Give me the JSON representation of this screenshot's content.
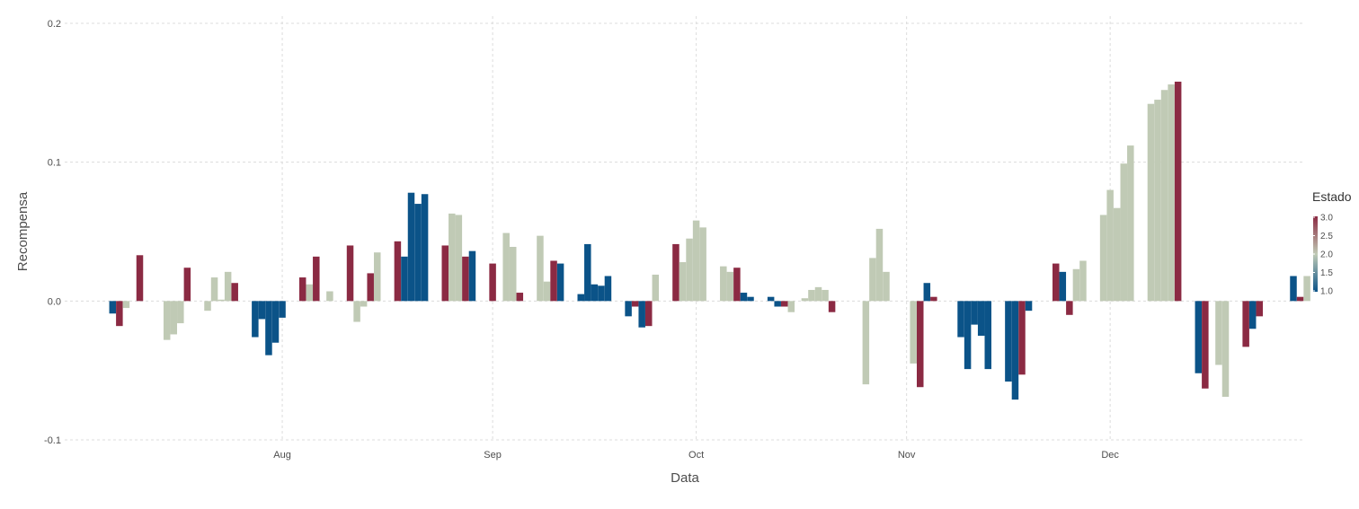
{
  "chart_data": {
    "type": "bar",
    "xlabel": "Data",
    "ylabel": "Recompensa",
    "ylim": [
      -0.1,
      0.2
    ],
    "yticks": [
      -0.1,
      0.0,
      0.1,
      0.2
    ],
    "ytick_labels": [
      "-0.1",
      "0.0",
      "0.1",
      "0.2"
    ],
    "xlim": [
      0,
      180
    ],
    "xticks": [
      {
        "label": "Aug",
        "day": 31
      },
      {
        "label": "Sep",
        "day": 62
      },
      {
        "label": "Oct",
        "day": 92
      },
      {
        "label": "Nov",
        "day": 123
      },
      {
        "label": "Dec",
        "day": 153
      }
    ],
    "grid": true,
    "legend": {
      "title": "Estado",
      "position": "right",
      "range": [
        1.0,
        3.0
      ],
      "ticks": [
        "3.0",
        "2.5",
        "2.0",
        "1.5",
        "1.0"
      ],
      "colors": {
        "1": "#0b5388",
        "2": "#c0cab5",
        "3": "#8b2a43"
      }
    },
    "bars": [
      {
        "day": 6,
        "value": -0.009,
        "state": 1
      },
      {
        "day": 7,
        "value": -0.018,
        "state": 3
      },
      {
        "day": 8,
        "value": -0.005,
        "state": 2
      },
      {
        "day": 10,
        "value": 0.033,
        "state": 3
      },
      {
        "day": 14,
        "value": -0.028,
        "state": 2
      },
      {
        "day": 15,
        "value": -0.024,
        "state": 2
      },
      {
        "day": 16,
        "value": -0.016,
        "state": 2
      },
      {
        "day": 17,
        "value": 0.024,
        "state": 3
      },
      {
        "day": 20,
        "value": -0.007,
        "state": 2
      },
      {
        "day": 21,
        "value": 0.017,
        "state": 2
      },
      {
        "day": 22,
        "value": 0.001,
        "state": 2
      },
      {
        "day": 23,
        "value": 0.021,
        "state": 2
      },
      {
        "day": 24,
        "value": 0.013,
        "state": 3
      },
      {
        "day": 27,
        "value": -0.026,
        "state": 1
      },
      {
        "day": 28,
        "value": -0.013,
        "state": 1
      },
      {
        "day": 29,
        "value": -0.039,
        "state": 1
      },
      {
        "day": 30,
        "value": -0.03,
        "state": 1
      },
      {
        "day": 31,
        "value": -0.012,
        "state": 1
      },
      {
        "day": 34,
        "value": 0.017,
        "state": 3
      },
      {
        "day": 35,
        "value": 0.012,
        "state": 2
      },
      {
        "day": 36,
        "value": 0.032,
        "state": 3
      },
      {
        "day": 38,
        "value": 0.007,
        "state": 2
      },
      {
        "day": 41,
        "value": 0.04,
        "state": 3
      },
      {
        "day": 42,
        "value": -0.015,
        "state": 2
      },
      {
        "day": 43,
        "value": -0.004,
        "state": 2
      },
      {
        "day": 44,
        "value": 0.02,
        "state": 3
      },
      {
        "day": 45,
        "value": 0.035,
        "state": 2
      },
      {
        "day": 48,
        "value": 0.043,
        "state": 3
      },
      {
        "day": 49,
        "value": 0.032,
        "state": 1
      },
      {
        "day": 50,
        "value": 0.078,
        "state": 1
      },
      {
        "day": 51,
        "value": 0.07,
        "state": 1
      },
      {
        "day": 52,
        "value": 0.077,
        "state": 1
      },
      {
        "day": 55,
        "value": 0.04,
        "state": 3
      },
      {
        "day": 56,
        "value": 0.063,
        "state": 2
      },
      {
        "day": 57,
        "value": 0.062,
        "state": 2
      },
      {
        "day": 58,
        "value": 0.032,
        "state": 3
      },
      {
        "day": 59,
        "value": 0.036,
        "state": 1
      },
      {
        "day": 62,
        "value": 0.027,
        "state": 3
      },
      {
        "day": 64,
        "value": 0.049,
        "state": 2
      },
      {
        "day": 65,
        "value": 0.039,
        "state": 2
      },
      {
        "day": 66,
        "value": 0.006,
        "state": 3
      },
      {
        "day": 69,
        "value": 0.047,
        "state": 2
      },
      {
        "day": 70,
        "value": 0.014,
        "state": 2
      },
      {
        "day": 71,
        "value": 0.029,
        "state": 3
      },
      {
        "day": 72,
        "value": 0.027,
        "state": 1
      },
      {
        "day": 75,
        "value": 0.005,
        "state": 1
      },
      {
        "day": 76,
        "value": 0.041,
        "state": 1
      },
      {
        "day": 77,
        "value": 0.012,
        "state": 1
      },
      {
        "day": 78,
        "value": 0.011,
        "state": 1
      },
      {
        "day": 79,
        "value": 0.018,
        "state": 1
      },
      {
        "day": 82,
        "value": -0.011,
        "state": 1
      },
      {
        "day": 83,
        "value": -0.004,
        "state": 3
      },
      {
        "day": 84,
        "value": -0.019,
        "state": 1
      },
      {
        "day": 85,
        "value": -0.018,
        "state": 3
      },
      {
        "day": 86,
        "value": 0.019,
        "state": 2
      },
      {
        "day": 89,
        "value": 0.041,
        "state": 3
      },
      {
        "day": 90,
        "value": 0.028,
        "state": 2
      },
      {
        "day": 91,
        "value": 0.045,
        "state": 2
      },
      {
        "day": 92,
        "value": 0.058,
        "state": 2
      },
      {
        "day": 93,
        "value": 0.053,
        "state": 2
      },
      {
        "day": 96,
        "value": 0.025,
        "state": 2
      },
      {
        "day": 97,
        "value": 0.021,
        "state": 2
      },
      {
        "day": 98,
        "value": 0.024,
        "state": 3
      },
      {
        "day": 99,
        "value": 0.006,
        "state": 1
      },
      {
        "day": 100,
        "value": 0.003,
        "state": 1
      },
      {
        "day": 103,
        "value": 0.003,
        "state": 1
      },
      {
        "day": 104,
        "value": -0.004,
        "state": 1
      },
      {
        "day": 105,
        "value": -0.004,
        "state": 3
      },
      {
        "day": 106,
        "value": -0.008,
        "state": 2
      },
      {
        "day": 108,
        "value": 0.002,
        "state": 2
      },
      {
        "day": 109,
        "value": 0.008,
        "state": 2
      },
      {
        "day": 110,
        "value": 0.01,
        "state": 2
      },
      {
        "day": 111,
        "value": 0.008,
        "state": 2
      },
      {
        "day": 112,
        "value": -0.008,
        "state": 3
      },
      {
        "day": 117,
        "value": -0.06,
        "state": 2
      },
      {
        "day": 118,
        "value": 0.031,
        "state": 2
      },
      {
        "day": 119,
        "value": 0.052,
        "state": 2
      },
      {
        "day": 120,
        "value": 0.021,
        "state": 2
      },
      {
        "day": 124,
        "value": -0.045,
        "state": 2
      },
      {
        "day": 125,
        "value": -0.062,
        "state": 3
      },
      {
        "day": 126,
        "value": 0.013,
        "state": 1
      },
      {
        "day": 127,
        "value": 0.003,
        "state": 3
      },
      {
        "day": 131,
        "value": -0.026,
        "state": 1
      },
      {
        "day": 132,
        "value": -0.049,
        "state": 1
      },
      {
        "day": 133,
        "value": -0.017,
        "state": 1
      },
      {
        "day": 134,
        "value": -0.025,
        "state": 1
      },
      {
        "day": 135,
        "value": -0.049,
        "state": 1
      },
      {
        "day": 138,
        "value": -0.058,
        "state": 1
      },
      {
        "day": 139,
        "value": -0.071,
        "state": 1
      },
      {
        "day": 140,
        "value": -0.053,
        "state": 3
      },
      {
        "day": 141,
        "value": -0.007,
        "state": 1
      },
      {
        "day": 145,
        "value": 0.027,
        "state": 3
      },
      {
        "day": 146,
        "value": 0.021,
        "state": 1
      },
      {
        "day": 147,
        "value": -0.01,
        "state": 3
      },
      {
        "day": 148,
        "value": 0.023,
        "state": 2
      },
      {
        "day": 149,
        "value": 0.029,
        "state": 2
      },
      {
        "day": 152,
        "value": 0.062,
        "state": 2
      },
      {
        "day": 153,
        "value": 0.08,
        "state": 2
      },
      {
        "day": 154,
        "value": 0.067,
        "state": 2
      },
      {
        "day": 155,
        "value": 0.099,
        "state": 2
      },
      {
        "day": 156,
        "value": 0.112,
        "state": 2
      },
      {
        "day": 159,
        "value": 0.142,
        "state": 2
      },
      {
        "day": 160,
        "value": 0.145,
        "state": 2
      },
      {
        "day": 161,
        "value": 0.152,
        "state": 2
      },
      {
        "day": 162,
        "value": 0.156,
        "state": 2
      },
      {
        "day": 163,
        "value": 0.158,
        "state": 3
      },
      {
        "day": 166,
        "value": -0.052,
        "state": 1
      },
      {
        "day": 167,
        "value": -0.063,
        "state": 3
      },
      {
        "day": 169,
        "value": -0.046,
        "state": 2
      },
      {
        "day": 170,
        "value": -0.069,
        "state": 2
      },
      {
        "day": 173,
        "value": -0.033,
        "state": 3
      },
      {
        "day": 174,
        "value": -0.02,
        "state": 1
      },
      {
        "day": 175,
        "value": -0.011,
        "state": 3
      },
      {
        "day": 180,
        "value": 0.018,
        "state": 1
      },
      {
        "day": 181,
        "value": 0.003,
        "state": 3
      },
      {
        "day": 182,
        "value": 0.018,
        "state": 2
      }
    ]
  }
}
